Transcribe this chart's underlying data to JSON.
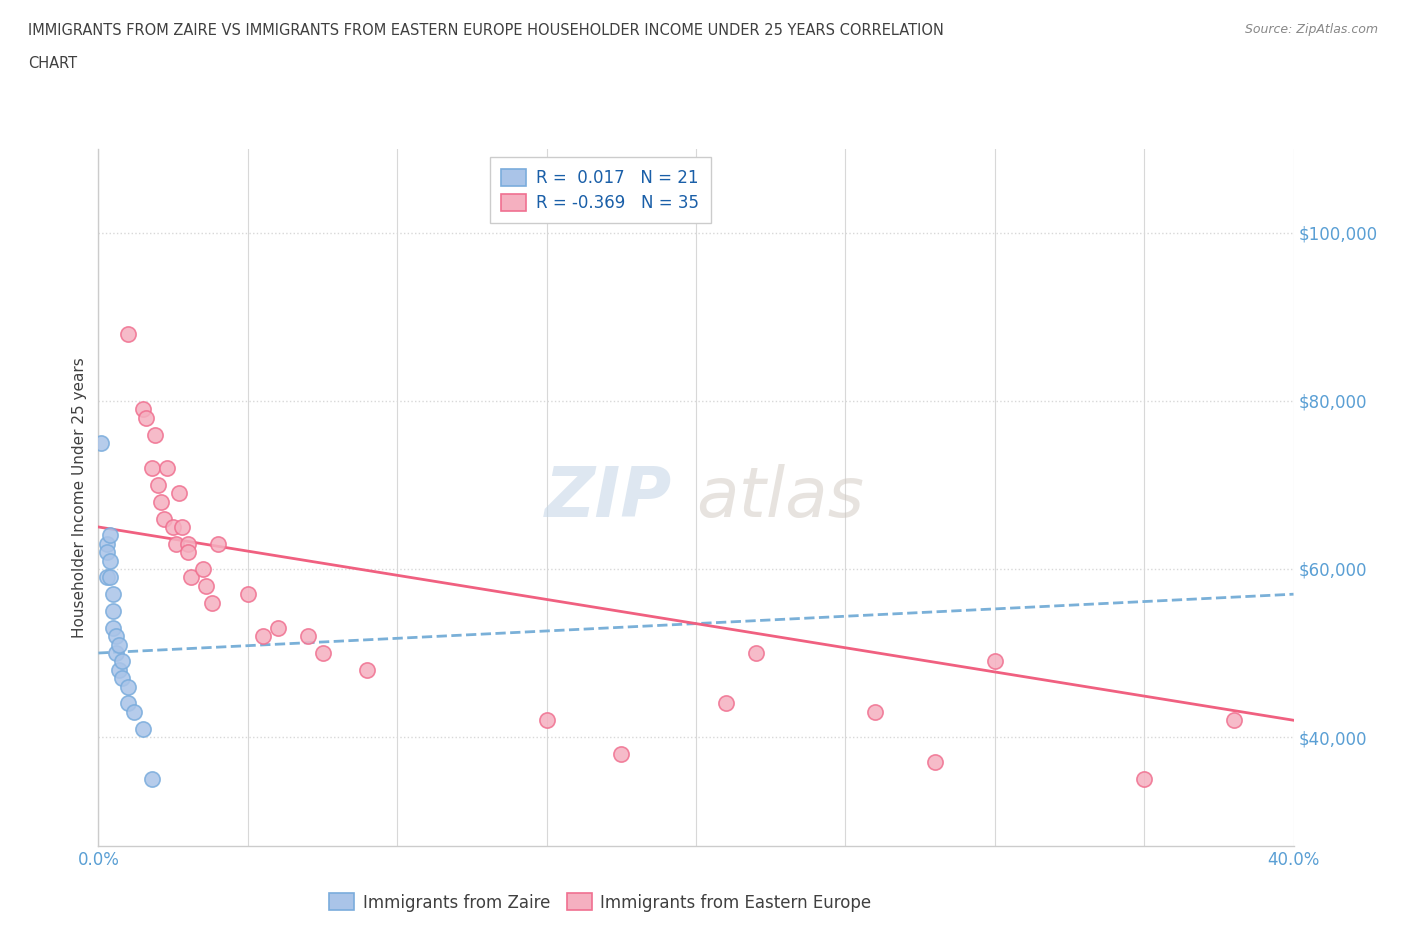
{
  "title_line1": "IMMIGRANTS FROM ZAIRE VS IMMIGRANTS FROM EASTERN EUROPE HOUSEHOLDER INCOME UNDER 25 YEARS CORRELATION",
  "title_line2": "CHART",
  "source_text": "Source: ZipAtlas.com",
  "ylabel": "Householder Income Under 25 years",
  "xlim": [
    0.0,
    0.4
  ],
  "ylim": [
    27000,
    110000
  ],
  "yticks": [
    40000,
    60000,
    80000,
    100000
  ],
  "ytick_labels": [
    "$40,000",
    "$60,000",
    "$80,000",
    "$100,000"
  ],
  "xticks": [
    0.0,
    0.05,
    0.1,
    0.15,
    0.2,
    0.25,
    0.3,
    0.35,
    0.4
  ],
  "zaire_R": 0.017,
  "zaire_N": 21,
  "eastern_R": -0.369,
  "eastern_N": 35,
  "zaire_color": "#aac4e8",
  "eastern_color": "#f5b0c0",
  "zaire_edge_color": "#7aacdc",
  "eastern_edge_color": "#f07090",
  "zaire_line_color": "#7ab0d8",
  "eastern_line_color": "#f06080",
  "zaire_points": [
    [
      0.001,
      75000
    ],
    [
      0.003,
      63000
    ],
    [
      0.003,
      62000
    ],
    [
      0.003,
      59000
    ],
    [
      0.004,
      64000
    ],
    [
      0.004,
      61000
    ],
    [
      0.004,
      59000
    ],
    [
      0.005,
      57000
    ],
    [
      0.005,
      55000
    ],
    [
      0.005,
      53000
    ],
    [
      0.006,
      52000
    ],
    [
      0.006,
      50000
    ],
    [
      0.007,
      51000
    ],
    [
      0.007,
      48000
    ],
    [
      0.008,
      49000
    ],
    [
      0.008,
      47000
    ],
    [
      0.01,
      46000
    ],
    [
      0.01,
      44000
    ],
    [
      0.012,
      43000
    ],
    [
      0.015,
      41000
    ],
    [
      0.018,
      35000
    ]
  ],
  "eastern_points": [
    [
      0.01,
      88000
    ],
    [
      0.015,
      79000
    ],
    [
      0.016,
      78000
    ],
    [
      0.018,
      72000
    ],
    [
      0.019,
      76000
    ],
    [
      0.02,
      70000
    ],
    [
      0.021,
      68000
    ],
    [
      0.022,
      66000
    ],
    [
      0.023,
      72000
    ],
    [
      0.025,
      65000
    ],
    [
      0.026,
      63000
    ],
    [
      0.027,
      69000
    ],
    [
      0.028,
      65000
    ],
    [
      0.03,
      63000
    ],
    [
      0.03,
      62000
    ],
    [
      0.031,
      59000
    ],
    [
      0.035,
      60000
    ],
    [
      0.036,
      58000
    ],
    [
      0.038,
      56000
    ],
    [
      0.04,
      63000
    ],
    [
      0.05,
      57000
    ],
    [
      0.055,
      52000
    ],
    [
      0.06,
      53000
    ],
    [
      0.07,
      52000
    ],
    [
      0.075,
      50000
    ],
    [
      0.09,
      48000
    ],
    [
      0.15,
      42000
    ],
    [
      0.175,
      38000
    ],
    [
      0.21,
      44000
    ],
    [
      0.22,
      50000
    ],
    [
      0.26,
      43000
    ],
    [
      0.28,
      37000
    ],
    [
      0.3,
      49000
    ],
    [
      0.35,
      35000
    ],
    [
      0.38,
      42000
    ]
  ],
  "watermark_zip": "ZIP",
  "watermark_atlas": "atlas",
  "background_color": "#ffffff",
  "grid_color": "#d8d8d8",
  "title_color": "#404040",
  "axis_label_color": "#404040",
  "tick_label_color": "#5a9fd4",
  "source_color": "#888888"
}
